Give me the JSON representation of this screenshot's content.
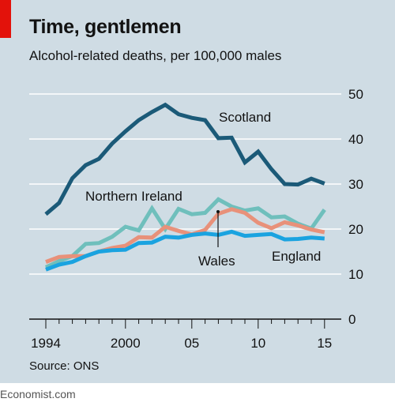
{
  "header": {
    "title": "Time, gentlemen",
    "subtitle": "Alcohol-related deaths, per 100,000 males"
  },
  "source": "Source: ONS",
  "brand": "Economist.com",
  "colors": {
    "background": "#cfdce4",
    "accent": "#e3120b",
    "scotland": "#1b5a78",
    "northern_ireland": "#6fbfbc",
    "wales": "#e8917a",
    "england": "#1aa3e0",
    "gridline": "#ffffff",
    "zero_line": "#121212"
  },
  "chart_data": {
    "type": "line",
    "title": "Time, gentlemen",
    "subtitle": "Alcohol-related deaths, per 100,000 males",
    "xlabel": "",
    "ylabel": "",
    "x": [
      1994,
      1995,
      1996,
      1997,
      1998,
      1999,
      2000,
      2001,
      2002,
      2003,
      2004,
      2005,
      2006,
      2007,
      2008,
      2009,
      2010,
      2011,
      2012,
      2013,
      2014,
      2015
    ],
    "x_tick_values": [
      1994,
      2000,
      2005,
      2010,
      2015
    ],
    "x_tick_labels": [
      "1994",
      "2000",
      "05",
      "10",
      "15"
    ],
    "xlim": [
      1993.5,
      2015.5
    ],
    "ylim": [
      0,
      50
    ],
    "y_ticks": [
      0,
      10,
      20,
      30,
      40,
      50
    ],
    "y_axis_position": "right",
    "grid": true,
    "legend": "direct-labels",
    "series": [
      {
        "name": "Scotland",
        "color": "#1b5a78",
        "values": [
          23.3,
          25.8,
          31.3,
          34.2,
          35.6,
          39.0,
          41.7,
          44.2,
          46.0,
          47.6,
          45.5,
          44.7,
          44.2,
          40.2,
          40.3,
          34.8,
          37.2,
          33.3,
          30.0,
          29.9,
          31.2,
          30.1
        ]
      },
      {
        "name": "Northern Ireland",
        "color": "#6fbfbc",
        "values": [
          11.5,
          12.9,
          14.0,
          16.7,
          16.9,
          18.3,
          20.5,
          19.7,
          24.6,
          20.0,
          24.5,
          23.3,
          23.6,
          26.6,
          25.0,
          24.1,
          24.6,
          22.6,
          22.8,
          21.2,
          20.1,
          24.3
        ]
      },
      {
        "name": "Wales",
        "color": "#e8917a",
        "values": [
          12.7,
          13.8,
          14.0,
          14.0,
          15.0,
          15.8,
          16.3,
          18.2,
          18.1,
          20.5,
          19.6,
          18.8,
          19.8,
          23.4,
          24.4,
          23.6,
          21.4,
          20.2,
          21.5,
          20.8,
          19.9,
          19.3
        ]
      },
      {
        "name": "England",
        "color": "#1aa3e0",
        "values": [
          11.0,
          12.1,
          12.7,
          14.0,
          15.0,
          15.3,
          15.4,
          16.9,
          17.0,
          18.3,
          18.1,
          18.7,
          19.0,
          18.7,
          19.4,
          18.5,
          18.7,
          18.9,
          17.7,
          17.8,
          18.1,
          17.9
        ]
      }
    ]
  }
}
